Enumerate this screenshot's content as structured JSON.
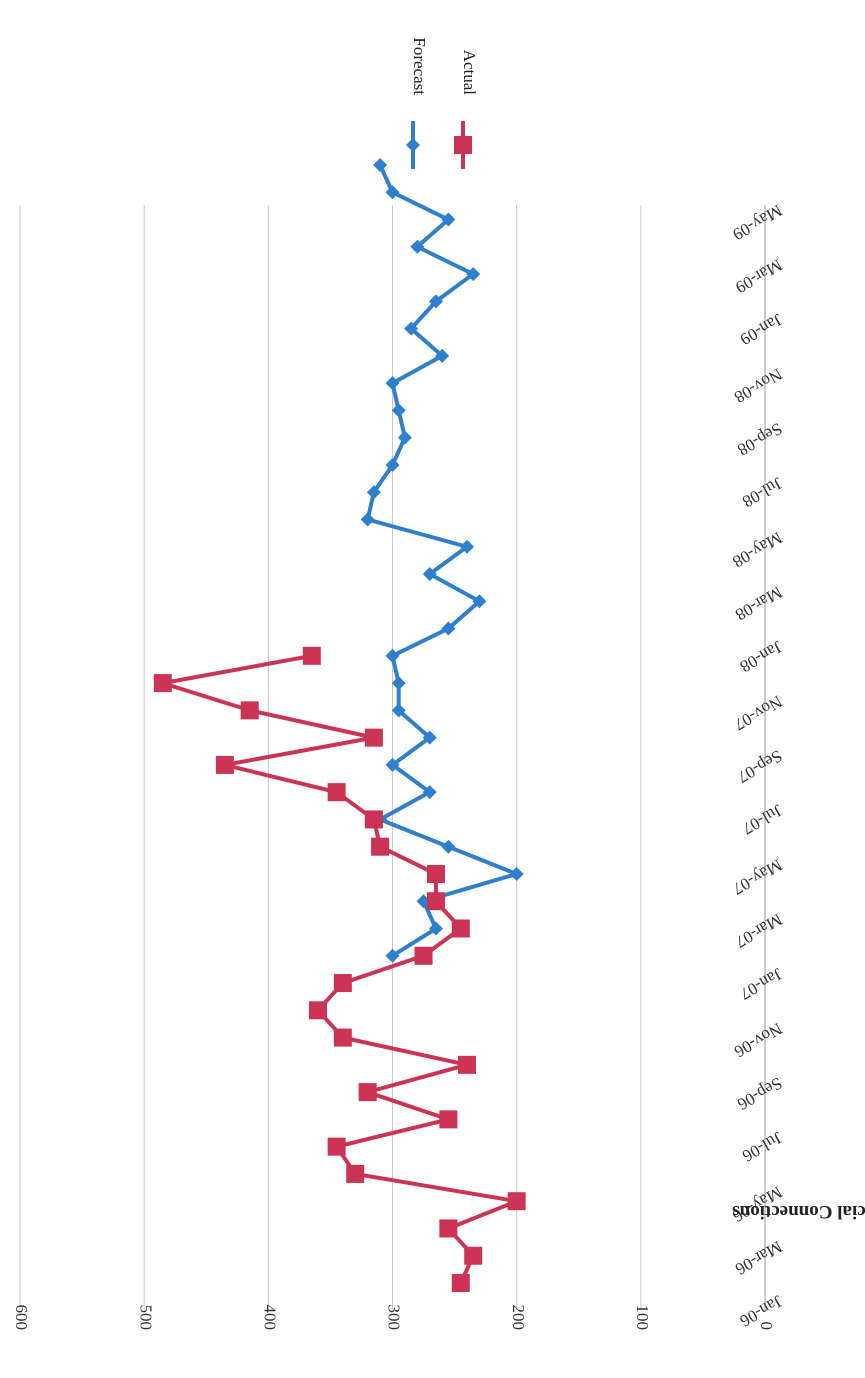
{
  "chart_data": {
    "type": "line",
    "orientation": "rotated-180",
    "ylabel": "New Commercial Connections",
    "xlabel": "",
    "ylim": [
      0,
      600
    ],
    "yticks": [
      0,
      100,
      200,
      300,
      400,
      500,
      600
    ],
    "y_tick_labels": [
      "0",
      "100",
      "200",
      "300",
      "400",
      "500",
      "600"
    ],
    "categories": [
      "Jan-06",
      "Feb-06",
      "Mar-06",
      "Apr-06",
      "May-06",
      "Jun-06",
      "Jul-06",
      "Aug-06",
      "Sep-06",
      "Oct-06",
      "Nov-06",
      "Dec-06",
      "Jan-07",
      "Feb-07",
      "Mar-07",
      "Apr-07",
      "May-07",
      "Jun-07",
      "Jul-07",
      "Aug-07",
      "Sep-07",
      "Oct-07",
      "Nov-07",
      "Dec-07",
      "Jan-08",
      "Feb-08",
      "Mar-08",
      "Apr-08",
      "May-08",
      "Jun-08",
      "Jul-08",
      "Aug-08",
      "Sep-08",
      "Oct-08",
      "Nov-08",
      "Dec-08",
      "Jan-09",
      "Feb-09",
      "Mar-09",
      "Apr-09",
      "May-09",
      "Jun-09"
    ],
    "x_tick_labels": [
      "Jan-06",
      "Mar-06",
      "May-06",
      "Jul-06",
      "Sep-06",
      "Nov-06",
      "Jan-07",
      "Mar-07",
      "May-07",
      "Jul-07",
      "Sep-07",
      "Nov-07",
      "Jan-08",
      "Mar-08",
      "May-08",
      "Jul-08",
      "Sep-08",
      "Nov-08",
      "Jan-09",
      "Mar-09",
      "May-09"
    ],
    "legend_position": "top-right",
    "grid": true,
    "series": [
      {
        "name": "Forecast",
        "color": "#2f7fcf",
        "marker": "diamond",
        "values": [
          null,
          null,
          null,
          null,
          null,
          null,
          null,
          null,
          null,
          null,
          null,
          null,
          300,
          265,
          275,
          200,
          255,
          310,
          270,
          300,
          270,
          295,
          295,
          300,
          255,
          230,
          270,
          240,
          320,
          315,
          300,
          290,
          295,
          300,
          260,
          285,
          265,
          235,
          280,
          255,
          300,
          310
        ]
      },
      {
        "name": "Actual",
        "color": "#cc3355",
        "marker": "square",
        "values": [
          245,
          235,
          255,
          200,
          330,
          345,
          255,
          320,
          240,
          340,
          360,
          340,
          275,
          245,
          265,
          265,
          310,
          315,
          345,
          435,
          315,
          415,
          485,
          365,
          null,
          null,
          null,
          null,
          null,
          null,
          null,
          null,
          null,
          null,
          null,
          null,
          null,
          null,
          null,
          null,
          null,
          null
        ]
      }
    ]
  }
}
